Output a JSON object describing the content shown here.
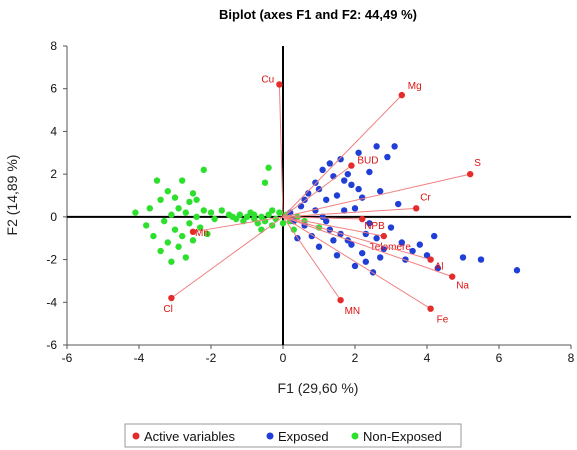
{
  "colors": {
    "active": "#e52b2b",
    "active_line": "#f08080",
    "exposed": "#1f3fd6",
    "non_exposed": "#2ee02e",
    "axis": "#000000"
  },
  "chart_data": {
    "type": "scatter",
    "title": "Biplot (axes F1 and F2: 44,49 %)",
    "xlabel": "F1 (29,60 %)",
    "ylabel": "F2 (14,89 %)",
    "xlim": [
      -6,
      8
    ],
    "ylim": [
      -6,
      8
    ],
    "xticks": [
      -6,
      -4,
      -2,
      0,
      2,
      4,
      6,
      8
    ],
    "yticks": [
      -6,
      -4,
      -2,
      0,
      2,
      4,
      6,
      8
    ],
    "grid": false,
    "legend": {
      "placement": "bottom",
      "entries": [
        "Active variables",
        "Exposed",
        "Non-Exposed"
      ]
    },
    "active_variables": [
      {
        "name": "Cu",
        "x": -0.1,
        "y": 6.2
      },
      {
        "name": "Mg",
        "x": 3.3,
        "y": 5.7
      },
      {
        "name": "BUD",
        "x": 1.9,
        "y": 2.4
      },
      {
        "name": "S",
        "x": 5.2,
        "y": 2.0
      },
      {
        "name": "Cr",
        "x": 3.7,
        "y": 0.4
      },
      {
        "name": "NPB",
        "x": 2.2,
        "y": -0.1
      },
      {
        "name": "Telomere",
        "x": 2.8,
        "y": -0.9
      },
      {
        "name": "Al",
        "x": 4.1,
        "y": -2.0
      },
      {
        "name": "Na",
        "x": 4.7,
        "y": -2.8
      },
      {
        "name": "Fe",
        "x": 4.1,
        "y": -4.3
      },
      {
        "name": "MN",
        "x": 1.6,
        "y": -3.9
      },
      {
        "name": "Mn",
        "x": -2.5,
        "y": -0.7
      },
      {
        "name": "Cl",
        "x": -3.1,
        "y": -3.8
      }
    ],
    "series": [
      {
        "name": "Exposed",
        "points": [
          [
            0.2,
            0.2
          ],
          [
            0.3,
            -0.2
          ],
          [
            0.5,
            0.5
          ],
          [
            0.6,
            -0.4
          ],
          [
            0.7,
            1.1
          ],
          [
            0.8,
            -0.9
          ],
          [
            0.9,
            1.6
          ],
          [
            1.0,
            -1.4
          ],
          [
            1.1,
            2.2
          ],
          [
            1.2,
            0.8
          ],
          [
            1.3,
            -0.6
          ],
          [
            1.4,
            1.9
          ],
          [
            1.5,
            -1.8
          ],
          [
            1.6,
            2.7
          ],
          [
            1.7,
            0.3
          ],
          [
            1.8,
            -1.1
          ],
          [
            1.9,
            1.5
          ],
          [
            2.0,
            -2.3
          ],
          [
            2.1,
            3.0
          ],
          [
            2.2,
            0.9
          ],
          [
            2.3,
            -0.8
          ],
          [
            2.4,
            2.1
          ],
          [
            2.5,
            -2.6
          ],
          [
            2.6,
            3.3
          ],
          [
            2.7,
            1.2
          ],
          [
            2.8,
            -1.5
          ],
          [
            2.9,
            2.8
          ],
          [
            3.0,
            -0.5
          ],
          [
            3.1,
            3.3
          ],
          [
            3.2,
            0.6
          ],
          [
            3.3,
            -1.2
          ],
          [
            3.4,
            -2.0
          ],
          [
            3.6,
            -1.6
          ],
          [
            3.8,
            -1.3
          ],
          [
            4.0,
            -1.8
          ],
          [
            4.2,
            -0.9
          ],
          [
            4.3,
            -2.4
          ],
          [
            5.0,
            -1.9
          ],
          [
            5.5,
            -2.0
          ],
          [
            6.5,
            -2.5
          ],
          [
            1.0,
            1.3
          ],
          [
            1.3,
            2.5
          ],
          [
            1.5,
            1.0
          ],
          [
            1.7,
            1.7
          ],
          [
            2.0,
            0.4
          ],
          [
            2.2,
            -1.7
          ],
          [
            2.4,
            -0.3
          ],
          [
            2.6,
            -1.0
          ],
          [
            0.9,
            0.3
          ],
          [
            1.2,
            -0.2
          ],
          [
            1.6,
            -0.8
          ],
          [
            1.9,
            -1.3
          ],
          [
            2.3,
            -2.1
          ],
          [
            2.7,
            -1.9
          ],
          [
            1.4,
            -1.1
          ],
          [
            2.1,
            1.3
          ],
          [
            1.8,
            2.0
          ],
          [
            1.1,
            0.0
          ],
          [
            0.6,
            0.8
          ],
          [
            0.4,
            -1.0
          ]
        ]
      },
      {
        "name": "Non-Exposed",
        "points": [
          [
            -4.1,
            0.2
          ],
          [
            -3.8,
            -0.4
          ],
          [
            -3.7,
            0.4
          ],
          [
            -3.6,
            -0.9
          ],
          [
            -3.5,
            1.7
          ],
          [
            -3.4,
            0.8
          ],
          [
            -3.4,
            -1.6
          ],
          [
            -3.3,
            -0.2
          ],
          [
            -3.2,
            1.2
          ],
          [
            -3.2,
            -1.2
          ],
          [
            -3.1,
            0.1
          ],
          [
            -3.1,
            -2.1
          ],
          [
            -3.0,
            0.9
          ],
          [
            -3.0,
            -0.6
          ],
          [
            -2.9,
            -1.4
          ],
          [
            -2.9,
            0.4
          ],
          [
            -2.8,
            1.7
          ],
          [
            -2.8,
            -0.9
          ],
          [
            -2.7,
            0.2
          ],
          [
            -2.7,
            -1.9
          ],
          [
            -2.6,
            0.7
          ],
          [
            -2.6,
            -0.3
          ],
          [
            -2.5,
            1.1
          ],
          [
            -2.5,
            -1.1
          ],
          [
            -2.4,
            0.0
          ],
          [
            -2.4,
            0.8
          ],
          [
            -2.3,
            -0.5
          ],
          [
            -2.2,
            2.2
          ],
          [
            -2.2,
            0.3
          ],
          [
            -2.1,
            -0.8
          ],
          [
            -2.0,
            0.2
          ],
          [
            -1.9,
            -0.1
          ],
          [
            -1.7,
            0.3
          ],
          [
            -1.5,
            0.1
          ],
          [
            -1.4,
            0.0
          ],
          [
            -1.3,
            -0.1
          ],
          [
            -1.2,
            0.1
          ],
          [
            -1.1,
            -0.2
          ],
          [
            -1.0,
            0.0
          ],
          [
            -0.9,
            0.2
          ],
          [
            -0.8,
            -0.1
          ],
          [
            -0.8,
            0.1
          ],
          [
            -0.7,
            -0.3
          ],
          [
            -0.6,
            0.0
          ],
          [
            -0.5,
            1.6
          ],
          [
            -0.5,
            -0.2
          ],
          [
            -0.4,
            2.3
          ],
          [
            -0.4,
            0.1
          ],
          [
            -0.3,
            -0.4
          ],
          [
            -0.3,
            0.3
          ],
          [
            -0.2,
            -0.1
          ],
          [
            -0.1,
            0.2
          ],
          [
            0.0,
            -0.3
          ],
          [
            0.1,
            0.1
          ],
          [
            0.2,
            -0.2
          ],
          [
            0.3,
            -0.6
          ],
          [
            0.4,
            0.0
          ],
          [
            0.6,
            -0.2
          ],
          [
            1.0,
            -0.5
          ],
          [
            -0.6,
            -0.6
          ]
        ]
      }
    ]
  }
}
